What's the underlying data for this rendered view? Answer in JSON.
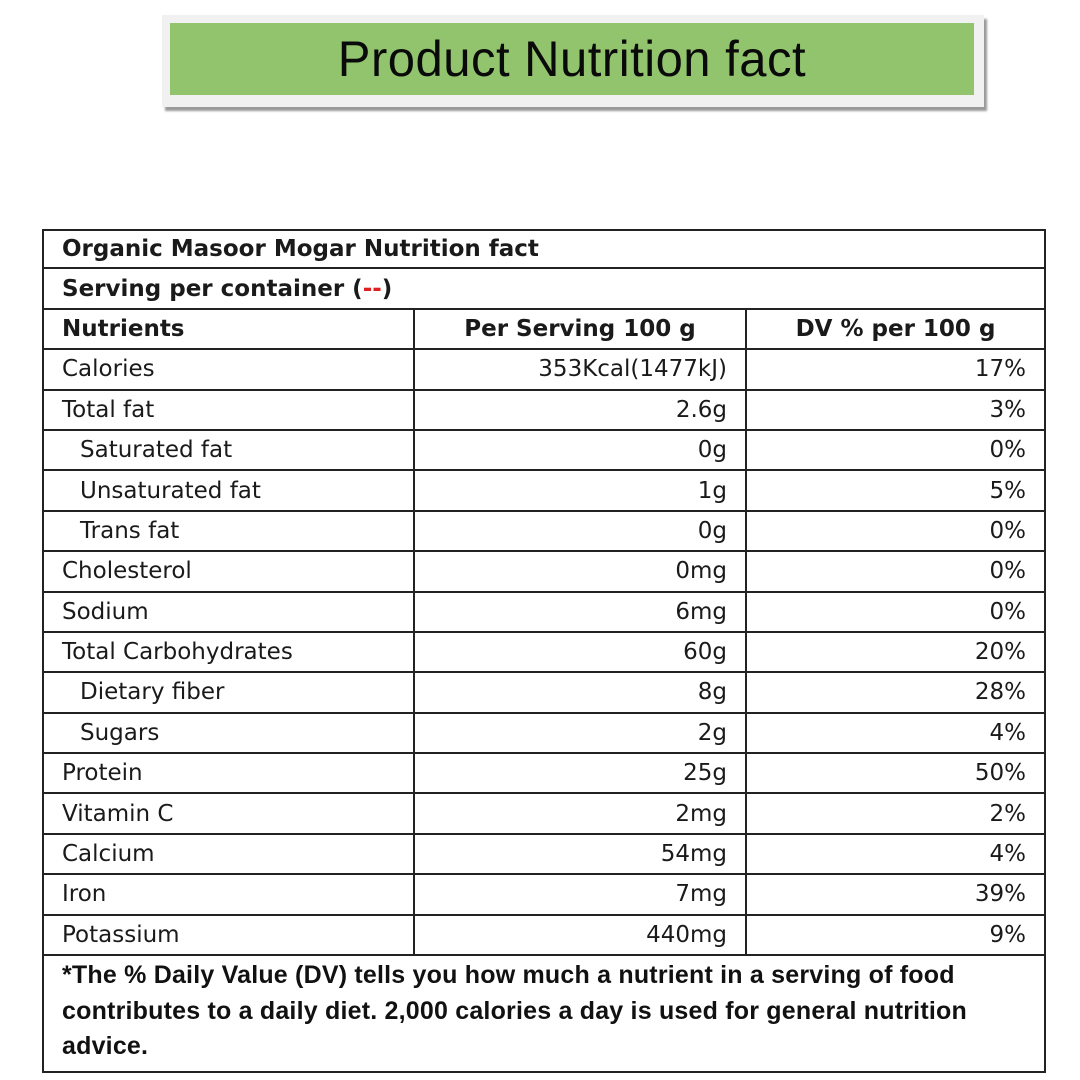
{
  "banner": {
    "title": "Product Nutrition fact",
    "background_color": "#92c46e"
  },
  "table": {
    "product_title": "Organic Masoor Mogar Nutrition fact",
    "serving": {
      "prefix": "Serving per container (",
      "value": "--",
      "suffix": ")",
      "value_color": "#e02020"
    },
    "columns": [
      "Nutrients",
      "Per Serving 100 g",
      "DV % per 100 g"
    ],
    "rows": [
      {
        "nutrient": "Calories",
        "per_serving": "353Kcal(1477kJ)",
        "dv": "17%",
        "indent": false
      },
      {
        "nutrient": "Total fat",
        "per_serving": "2.6g",
        "dv": "3%",
        "indent": false
      },
      {
        "nutrient": "Saturated fat",
        "per_serving": "0g",
        "dv": "0%",
        "indent": true
      },
      {
        "nutrient": "Unsaturated fat",
        "per_serving": "1g",
        "dv": "5%",
        "indent": true
      },
      {
        "nutrient": "Trans fat",
        "per_serving": "0g",
        "dv": "0%",
        "indent": true
      },
      {
        "nutrient": "Cholesterol",
        "per_serving": "0mg",
        "dv": "0%",
        "indent": false
      },
      {
        "nutrient": "Sodium",
        "per_serving": "6mg",
        "dv": "0%",
        "indent": false
      },
      {
        "nutrient": "Total Carbohydrates",
        "per_serving": "60g",
        "dv": "20%",
        "indent": false
      },
      {
        "nutrient": "Dietary fiber",
        "per_serving": "8g",
        "dv": "28%",
        "indent": true
      },
      {
        "nutrient": "Sugars",
        "per_serving": "2g",
        "dv": "4%",
        "indent": true
      },
      {
        "nutrient": "Protein",
        "per_serving": "25g",
        "dv": "50%",
        "indent": false
      },
      {
        "nutrient": "Vitamin C",
        "per_serving": "2mg",
        "dv": "2%",
        "indent": false
      },
      {
        "nutrient": "Calcium",
        "per_serving": "54mg",
        "dv": "4%",
        "indent": false
      },
      {
        "nutrient": "Iron",
        "per_serving": "7mg",
        "dv": "39%",
        "indent": false
      },
      {
        "nutrient": "Potassium",
        "per_serving": "440mg",
        "dv": "9%",
        "indent": false
      }
    ],
    "footnote": "*The % Daily Value (DV) tells you how much a nutrient in a serving of food contributes to a daily diet. 2,000 calories a day is used for general nutrition advice."
  }
}
